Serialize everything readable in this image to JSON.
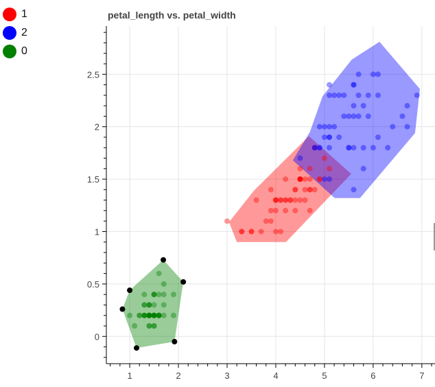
{
  "chart_data": {
    "type": "scatter",
    "title": "petal_length vs. petal_width",
    "xlabel": "",
    "ylabel": "",
    "xlim": [
      0.52,
      7.27
    ],
    "ylim": [
      -0.26,
      2.96
    ],
    "grid": true,
    "legend_position": "top-left outside",
    "x_ticks": [
      "1",
      "2",
      "3",
      "4",
      "5",
      "6",
      "7"
    ],
    "x_tick_values": [
      1,
      2,
      3,
      4,
      5,
      6,
      7
    ],
    "y_ticks": [
      "0",
      "0.5",
      "1",
      "1.5",
      "2",
      "2.5"
    ],
    "y_tick_values": [
      0,
      0.5,
      1,
      1.5,
      2,
      2.5
    ],
    "legend": [
      {
        "label": "1",
        "color": "#ff0000"
      },
      {
        "label": "2",
        "color": "#0000ff"
      },
      {
        "label": "0",
        "color": "#008000"
      }
    ],
    "series": [
      {
        "name": "1",
        "color": "#ff0000",
        "hull": [
          [
            3.04,
            1.09
          ],
          [
            3.2,
            0.9
          ],
          [
            4.21,
            0.9
          ],
          [
            5.55,
            1.55
          ],
          [
            4.68,
            1.91
          ],
          [
            3.55,
            1.39
          ]
        ],
        "points": [
          [
            4.7,
            1.4
          ],
          [
            4.5,
            1.5
          ],
          [
            4.9,
            1.5
          ],
          [
            4.0,
            1.3
          ],
          [
            4.6,
            1.5
          ],
          [
            4.5,
            1.3
          ],
          [
            4.7,
            1.6
          ],
          [
            3.3,
            1.0
          ],
          [
            4.6,
            1.3
          ],
          [
            3.9,
            1.4
          ],
          [
            3.5,
            1.0
          ],
          [
            4.2,
            1.5
          ],
          [
            4.0,
            1.0
          ],
          [
            4.7,
            1.4
          ],
          [
            3.6,
            1.3
          ],
          [
            4.4,
            1.4
          ],
          [
            4.5,
            1.5
          ],
          [
            4.1,
            1.0
          ],
          [
            4.5,
            1.5
          ],
          [
            3.9,
            1.1
          ],
          [
            4.8,
            1.8
          ],
          [
            4.0,
            1.3
          ],
          [
            4.9,
            1.5
          ],
          [
            4.7,
            1.2
          ],
          [
            4.3,
            1.3
          ],
          [
            4.4,
            1.4
          ],
          [
            4.8,
            1.4
          ],
          [
            5.0,
            1.7
          ],
          [
            4.5,
            1.5
          ],
          [
            3.5,
            1.0
          ],
          [
            3.8,
            1.1
          ],
          [
            3.7,
            1.0
          ],
          [
            3.9,
            1.2
          ],
          [
            5.1,
            1.6
          ],
          [
            4.5,
            1.5
          ],
          [
            4.5,
            1.6
          ],
          [
            4.7,
            1.5
          ],
          [
            4.4,
            1.3
          ],
          [
            4.1,
            1.3
          ],
          [
            4.0,
            1.3
          ],
          [
            4.4,
            1.2
          ],
          [
            4.6,
            1.4
          ],
          [
            4.0,
            1.2
          ],
          [
            3.3,
            1.0
          ],
          [
            4.2,
            1.3
          ],
          [
            4.2,
            1.2
          ],
          [
            4.2,
            1.3
          ],
          [
            4.3,
            1.3
          ],
          [
            3.0,
            1.1
          ],
          [
            4.1,
            1.3
          ]
        ]
      },
      {
        "name": "2",
        "color": "#0000ff",
        "hull": [
          [
            4.35,
            1.68
          ],
          [
            5.21,
            1.32
          ],
          [
            5.73,
            1.32
          ],
          [
            6.86,
            1.94
          ],
          [
            6.96,
            2.36
          ],
          [
            6.13,
            2.81
          ],
          [
            5.56,
            2.64
          ],
          [
            4.96,
            2.29
          ],
          [
            4.7,
            1.95
          ]
        ],
        "points": [
          [
            6.0,
            2.5
          ],
          [
            5.1,
            1.9
          ],
          [
            5.9,
            2.1
          ],
          [
            5.6,
            1.8
          ],
          [
            5.8,
            2.2
          ],
          [
            6.6,
            2.1
          ],
          [
            4.5,
            1.7
          ],
          [
            6.3,
            1.8
          ],
          [
            5.8,
            1.8
          ],
          [
            6.1,
            2.5
          ],
          [
            5.1,
            2.0
          ],
          [
            5.3,
            1.9
          ],
          [
            5.5,
            2.1
          ],
          [
            5.0,
            2.0
          ],
          [
            5.1,
            2.4
          ],
          [
            5.3,
            2.3
          ],
          [
            5.5,
            1.8
          ],
          [
            6.7,
            2.2
          ],
          [
            6.9,
            2.3
          ],
          [
            5.0,
            1.5
          ],
          [
            5.7,
            2.3
          ],
          [
            4.9,
            2.0
          ],
          [
            6.7,
            2.0
          ],
          [
            4.9,
            1.8
          ],
          [
            5.7,
            2.1
          ],
          [
            6.0,
            1.8
          ],
          [
            4.8,
            1.8
          ],
          [
            4.9,
            1.8
          ],
          [
            5.6,
            2.1
          ],
          [
            5.8,
            1.6
          ],
          [
            6.1,
            1.9
          ],
          [
            6.4,
            2.0
          ],
          [
            5.6,
            2.2
          ],
          [
            5.1,
            1.5
          ],
          [
            5.6,
            1.4
          ],
          [
            6.1,
            2.3
          ],
          [
            5.6,
            2.4
          ],
          [
            5.5,
            1.8
          ],
          [
            4.8,
            1.8
          ],
          [
            5.4,
            2.1
          ],
          [
            5.6,
            2.4
          ],
          [
            5.1,
            2.3
          ],
          [
            5.1,
            1.9
          ],
          [
            5.9,
            2.3
          ],
          [
            5.7,
            2.5
          ],
          [
            5.2,
            2.3
          ],
          [
            5.0,
            1.9
          ],
          [
            5.2,
            2.0
          ],
          [
            5.4,
            2.3
          ],
          [
            5.1,
            1.8
          ]
        ]
      },
      {
        "name": "0",
        "color": "#008000",
        "hull": [
          [
            0.85,
            0.26
          ],
          [
            1.0,
            0.44
          ],
          [
            1.69,
            0.73
          ],
          [
            2.1,
            0.52
          ],
          [
            1.92,
            -0.05
          ],
          [
            1.14,
            -0.11
          ]
        ],
        "hull_vertex_color": "#000000",
        "points": [
          [
            1.4,
            0.2
          ],
          [
            1.4,
            0.2
          ],
          [
            1.3,
            0.2
          ],
          [
            1.5,
            0.2
          ],
          [
            1.4,
            0.2
          ],
          [
            1.7,
            0.4
          ],
          [
            1.4,
            0.3
          ],
          [
            1.5,
            0.2
          ],
          [
            1.4,
            0.2
          ],
          [
            1.5,
            0.1
          ],
          [
            1.5,
            0.2
          ],
          [
            1.6,
            0.2
          ],
          [
            1.4,
            0.1
          ],
          [
            1.1,
            0.1
          ],
          [
            1.2,
            0.2
          ],
          [
            1.5,
            0.4
          ],
          [
            1.3,
            0.4
          ],
          [
            1.4,
            0.3
          ],
          [
            1.7,
            0.3
          ],
          [
            1.5,
            0.3
          ],
          [
            1.7,
            0.2
          ],
          [
            1.5,
            0.4
          ],
          [
            1.0,
            0.2
          ],
          [
            1.7,
            0.5
          ],
          [
            1.9,
            0.2
          ],
          [
            1.6,
            0.2
          ],
          [
            1.6,
            0.4
          ],
          [
            1.5,
            0.2
          ],
          [
            1.4,
            0.2
          ],
          [
            1.6,
            0.2
          ],
          [
            1.6,
            0.2
          ],
          [
            1.5,
            0.4
          ],
          [
            1.5,
            0.1
          ],
          [
            1.4,
            0.2
          ],
          [
            1.5,
            0.2
          ],
          [
            1.2,
            0.2
          ],
          [
            1.3,
            0.2
          ],
          [
            1.4,
            0.1
          ],
          [
            1.3,
            0.2
          ],
          [
            1.5,
            0.2
          ],
          [
            1.3,
            0.3
          ],
          [
            1.3,
            0.3
          ],
          [
            1.3,
            0.2
          ],
          [
            1.6,
            0.6
          ],
          [
            1.9,
            0.4
          ],
          [
            1.4,
            0.3
          ],
          [
            1.6,
            0.2
          ],
          [
            1.4,
            0.2
          ],
          [
            1.5,
            0.2
          ],
          [
            1.4,
            0.2
          ]
        ]
      }
    ]
  }
}
